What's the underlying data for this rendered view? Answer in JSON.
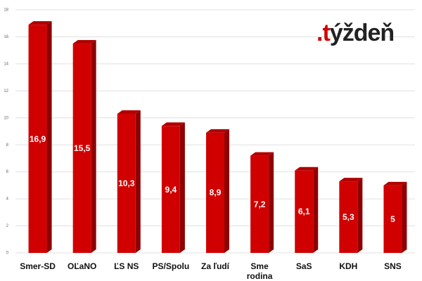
{
  "chart_data": {
    "type": "bar",
    "logo": ".týždeň",
    "categories": [
      "Smer-SD",
      "OĽaNO",
      "ĽS NS",
      "PS/Spolu",
      "Za ľudí",
      "Sme rodina",
      "SaS",
      "KDH",
      "SNS"
    ],
    "values": [
      16.9,
      15.5,
      10.3,
      9.4,
      8.9,
      7.2,
      6.1,
      5.3,
      5
    ],
    "value_labels": [
      "16,9",
      "15,5",
      "10,3",
      "9,4",
      "8,9",
      "7,2",
      "6,1",
      "5,3",
      "5"
    ],
    "color": "#d10000",
    "ylim": [
      0,
      18
    ],
    "yticks": [
      0,
      2,
      4,
      6,
      8,
      10,
      12,
      14,
      16,
      18
    ],
    "grid": true
  }
}
